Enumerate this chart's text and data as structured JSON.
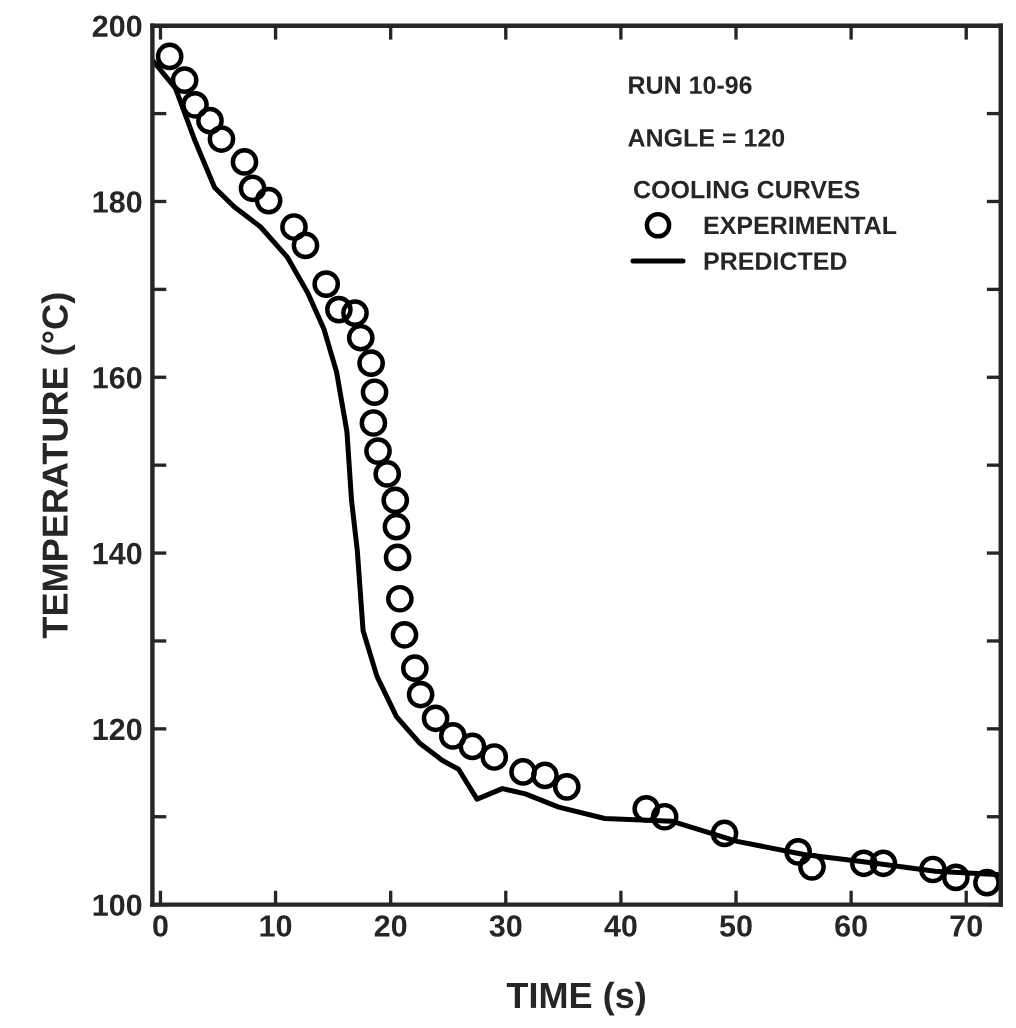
{
  "chart_data": {
    "type": "scatter",
    "xlabel": "TIME (s)",
    "ylabel": "TEMPERATURE (°C)",
    "legend_title": "COOLING CURVES",
    "annotations": [
      "RUN 10-96",
      "ANGLE = 120"
    ],
    "xlim": [
      -0.7,
      73
    ],
    "ylim": [
      100,
      200
    ],
    "xticks": [
      0,
      10,
      20,
      30,
      40,
      50,
      60,
      70
    ],
    "yticks": [
      100,
      {
        "value": 110,
        "label": null
      },
      120,
      {
        "value": 130,
        "label": null
      },
      140,
      {
        "value": 150,
        "label": null
      },
      160,
      {
        "value": 170,
        "label": null
      },
      180,
      {
        "value": 190,
        "label": null
      },
      200
    ],
    "grid": false,
    "legend": "top right",
    "series": [
      {
        "name": "EXPERIMENTAL",
        "marker": "circle",
        "color": "#000000",
        "x": [
          0.8,
          2.1,
          3.0,
          4.3,
          5.3,
          7.3,
          8.0,
          9.4,
          11.6,
          12.6,
          14.4,
          15.5,
          16.9,
          17.4,
          18.3,
          18.6,
          18.5,
          18.9,
          19.7,
          20.4,
          20.5,
          20.6,
          20.8,
          21.2,
          22.1,
          22.6,
          23.9,
          25.4,
          27.1,
          29.0,
          31.5,
          33.4,
          35.3,
          42.2,
          43.8,
          49.0,
          55.4,
          56.6,
          61.1,
          62.8,
          67.1,
          69.1,
          71.8
        ],
        "values": [
          196.5,
          193.8,
          191.0,
          189.2,
          187.1,
          184.5,
          181.5,
          180.1,
          177.1,
          175.0,
          170.6,
          167.7,
          167.3,
          164.5,
          161.6,
          158.3,
          154.8,
          151.6,
          149.0,
          146.0,
          143.0,
          139.5,
          134.8,
          130.7,
          126.9,
          123.9,
          121.2,
          119.2,
          118.0,
          116.8,
          115.1,
          114.7,
          113.4,
          110.9,
          110.0,
          108.1,
          106.0,
          104.3,
          104.7,
          104.7,
          104.0,
          103.1,
          102.5
        ]
      },
      {
        "name": "PREDICTED",
        "type": "line",
        "marker": "none",
        "line_style": "solid",
        "color": "#000000",
        "x": [
          -0.7,
          1.3,
          3.0,
          4.7,
          6.4,
          8.7,
          11.0,
          12.8,
          14.2,
          15.3,
          16.2,
          16.6,
          17.1,
          17.6,
          18.8,
          20.5,
          22.5,
          24.5,
          25.9,
          27.5,
          29.7,
          31.7,
          34.6,
          38.6,
          44.4,
          50.1,
          55.9,
          61.6,
          67.3,
          73.0
        ],
        "values": [
          196.1,
          192.9,
          186.9,
          181.6,
          179.4,
          177.1,
          173.7,
          169.6,
          165.5,
          160.6,
          153.8,
          146.0,
          140.3,
          131.2,
          126.0,
          121.4,
          118.4,
          116.4,
          115.4,
          112.0,
          113.2,
          112.6,
          111.1,
          109.8,
          109.5,
          107.2,
          105.7,
          104.8,
          103.8,
          103.4
        ]
      }
    ]
  }
}
